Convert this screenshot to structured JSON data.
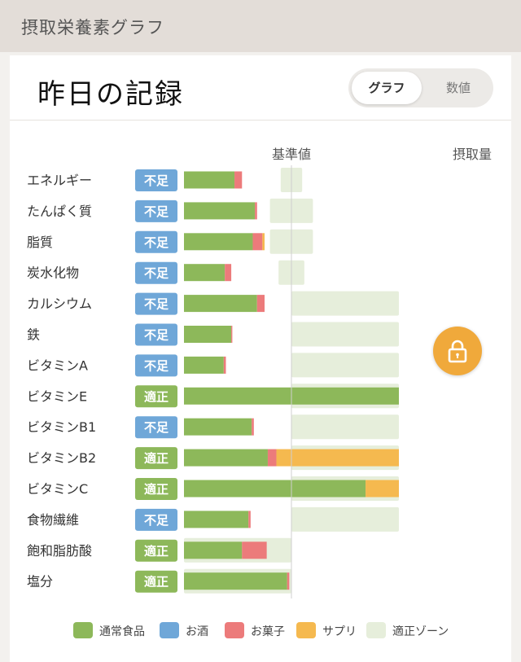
{
  "header": {
    "title": "摂取栄養素グラフ"
  },
  "card": {
    "heading": "昨日の記録",
    "toggle": {
      "graph_label": "グラフ",
      "value_label": "数値",
      "selected": "グラフ"
    }
  },
  "lock_button": {
    "icon": "lock-icon",
    "color": "#f0a93b"
  },
  "colors": {
    "food": "#8db85a",
    "alcohol": "#6fa7d8",
    "snack": "#ec7b7b",
    "supplement": "#f5b94f",
    "zone": "#e6eedb",
    "badge_low": "#6fa7d8",
    "badge_ok": "#8db85a"
  },
  "chart_data": {
    "type": "bar",
    "orientation": "horizontal",
    "stacked": true,
    "xlabel_reference": "基準値",
    "value_column_header": "摂取量",
    "units": "% of reference",
    "reference_value": 100,
    "categories": [
      "エネルギー",
      "たんぱく質",
      "脂質",
      "炭水化物",
      "カルシウム",
      "鉄",
      "ビタミンA",
      "ビタミンE",
      "ビタミンB1",
      "ビタミンB2",
      "ビタミンC",
      "食物繊維",
      "飽和脂肪酸",
      "塩分"
    ],
    "status": [
      "不足",
      "不足",
      "不足",
      "不足",
      "不足",
      "不足",
      "不足",
      "適正",
      "不足",
      "適正",
      "適正",
      "不足",
      "適正",
      "適正"
    ],
    "series": [
      {
        "name": "通常食品",
        "key": "food",
        "values": [
          47,
          66,
          64,
          38,
          68,
          44,
          37,
          200,
          63,
          78,
          169,
          60,
          54,
          96
        ]
      },
      {
        "name": "お酒",
        "key": "alcohol",
        "values": [
          0,
          0,
          0,
          0,
          0,
          0,
          0,
          0,
          0,
          0,
          0,
          0,
          0,
          0
        ]
      },
      {
        "name": "お菓子",
        "key": "snack",
        "values": [
          7,
          2,
          9,
          6,
          7,
          1,
          2,
          0,
          2,
          8,
          0,
          2,
          23,
          2
        ]
      },
      {
        "name": "サプリ",
        "key": "supplement",
        "values": [
          0,
          0,
          2,
          0,
          0,
          0,
          0,
          0,
          0,
          114,
          31,
          0,
          0,
          0
        ]
      }
    ],
    "zone_series_name": "適正ゾーン",
    "zones": [
      [
        90,
        110
      ],
      [
        80,
        120
      ],
      [
        80,
        120
      ],
      [
        88,
        112
      ],
      [
        100,
        200
      ],
      [
        100,
        200
      ],
      [
        100,
        200
      ],
      [
        100,
        200
      ],
      [
        100,
        200
      ],
      [
        100,
        200
      ],
      [
        100,
        200
      ],
      [
        100,
        200
      ],
      [
        0,
        100
      ],
      [
        0,
        100
      ]
    ],
    "xlim": [
      -100,
      200
    ],
    "legend_position": "bottom"
  }
}
